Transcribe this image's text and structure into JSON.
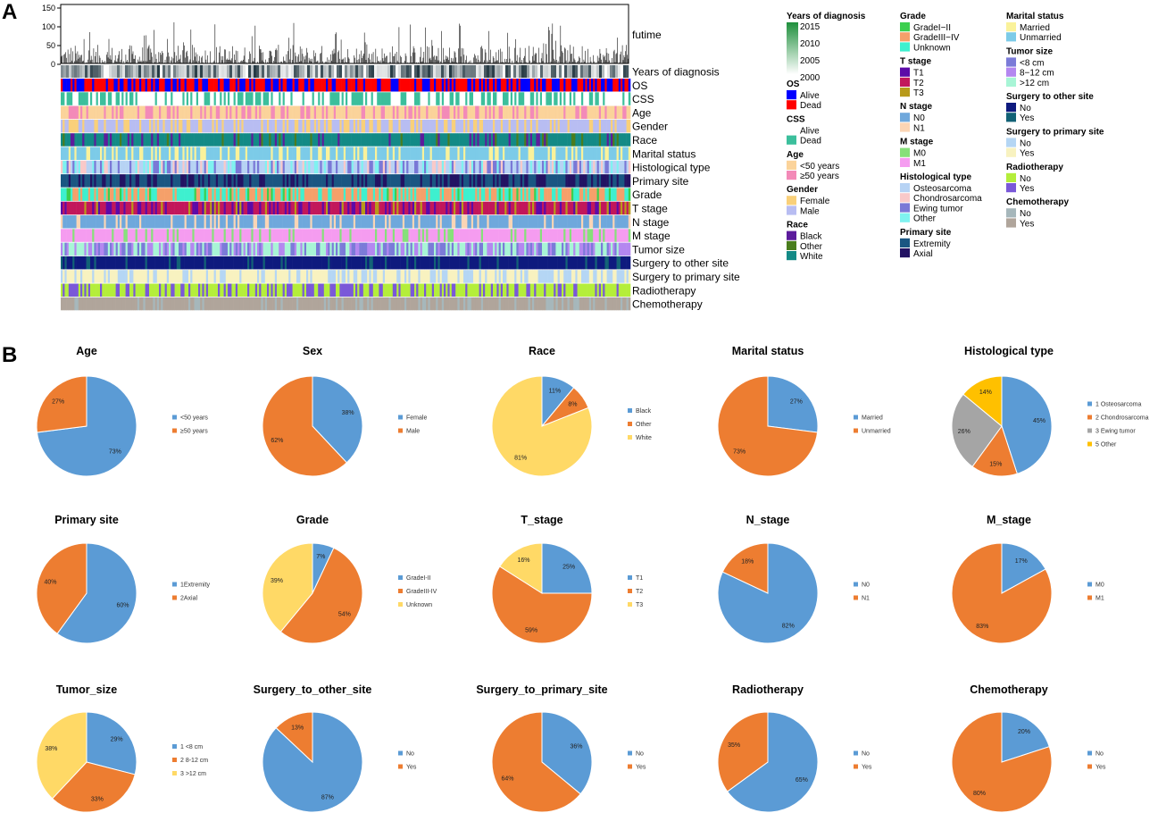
{
  "panels": {
    "a": "A",
    "b": "B"
  },
  "heatmap": {
    "futime_label": "futime",
    "futime_ticks": [
      "150",
      "100",
      "50",
      "0"
    ],
    "row_labels": [
      "Years of diagnosis",
      "OS",
      "CSS",
      "Age",
      "Gender",
      "Race",
      "Marital status",
      "Histological type",
      "Primary site",
      "Grade",
      "T  stage",
      "N  stage",
      "M  stage",
      "Tumor  size",
      "Surgery  to  other  site",
      "Surgery  to  primary  site",
      "Radiotherapy",
      "Chemotherapy"
    ]
  },
  "legends": [
    {
      "title": "Years of diagnosis",
      "type": "gradient",
      "ticks": [
        "2015",
        "2010",
        "2005",
        "2000"
      ],
      "colors": [
        "#1e8f3c",
        "#ffffff"
      ]
    },
    {
      "title": "OS",
      "items": [
        {
          "label": "Alive",
          "color": "#0000ff"
        },
        {
          "label": "Dead",
          "color": "#ff0000"
        }
      ]
    },
    {
      "title": "CSS",
      "items": [
        {
          "label": "Alive",
          "color": "#ffffff"
        },
        {
          "label": "Dead",
          "color": "#3cbf9c"
        }
      ]
    },
    {
      "title": "Age",
      "items": [
        {
          "label": "<50 years",
          "color": "#fbd39a"
        },
        {
          "label": "≥50 years",
          "color": "#f38ab8"
        }
      ]
    },
    {
      "title": "Gender",
      "items": [
        {
          "label": "Female",
          "color": "#f9d07a"
        },
        {
          "label": "Male",
          "color": "#b8bdf2"
        }
      ]
    },
    {
      "title": "Race",
      "items": [
        {
          "label": "Black",
          "color": "#5c1c9c"
        },
        {
          "label": "Other",
          "color": "#4a7d1e"
        },
        {
          "label": "White",
          "color": "#138a86"
        }
      ]
    },
    {
      "title": "Grade",
      "items": [
        {
          "label": "GradeI−II",
          "color": "#3ccf4e"
        },
        {
          "label": "GradeIII−IV",
          "color": "#f5a06a"
        },
        {
          "label": "Unknown",
          "color": "#3ef0cf"
        }
      ]
    },
    {
      "title": "T stage",
      "items": [
        {
          "label": "T1",
          "color": "#5c0aa8"
        },
        {
          "label": "T2",
          "color": "#c2175b"
        },
        {
          "label": "T3",
          "color": "#b89a1a"
        }
      ]
    },
    {
      "title": "N stage",
      "items": [
        {
          "label": "N0",
          "color": "#6fa8dc"
        },
        {
          "label": "N1",
          "color": "#fbd5b5"
        }
      ]
    },
    {
      "title": "M stage",
      "items": [
        {
          "label": "M0",
          "color": "#86e07a"
        },
        {
          "label": "M1",
          "color": "#f59cf0"
        }
      ]
    },
    {
      "title": "Histological type",
      "items": [
        {
          "label": "Osteosarcoma",
          "color": "#b7d3f4"
        },
        {
          "label": "Chondrosarcoma",
          "color": "#f9c9c9"
        },
        {
          "label": "Ewing tumor",
          "color": "#7a78d6"
        },
        {
          "label": "Other",
          "color": "#7ff2f0"
        }
      ]
    },
    {
      "title": "Primary site",
      "items": [
        {
          "label": "Extremity",
          "color": "#1a5682"
        },
        {
          "label": "Axial",
          "color": "#231363"
        }
      ]
    },
    {
      "title": "Marital status",
      "items": [
        {
          "label": "Married",
          "color": "#faf29a"
        },
        {
          "label": "Unmarried",
          "color": "#7ccbe8"
        }
      ]
    },
    {
      "title": "Tumor  size",
      "items": [
        {
          "label": "<8 cm",
          "color": "#7b7bd8"
        },
        {
          "label": "8−12 cm",
          "color": "#b487f0"
        },
        {
          "label": ">12 cm",
          "color": "#a8f5d6"
        }
      ]
    },
    {
      "title": "Surgery to other site",
      "items": [
        {
          "label": "No",
          "color": "#0e1a7e"
        },
        {
          "label": "Yes",
          "color": "#126276"
        }
      ]
    },
    {
      "title": "Surgery to primary site",
      "items": [
        {
          "label": "No",
          "color": "#b5d6f4"
        },
        {
          "label": "Yes",
          "color": "#f8f2c0"
        }
      ]
    },
    {
      "title": "Radiotherapy",
      "items": [
        {
          "label": "No",
          "color": "#b4ee3a"
        },
        {
          "label": "Yes",
          "color": "#7a58d8"
        }
      ]
    },
    {
      "title": "Chemotherapy",
      "items": [
        {
          "label": "No",
          "color": "#a6b7bb"
        },
        {
          "label": "Yes",
          "color": "#b0a59b"
        }
      ]
    }
  ],
  "chart_data": [
    {
      "type": "pie",
      "title": "Age",
      "labels": [
        "<50 years",
        "≥50 years"
      ],
      "values": [
        73,
        27
      ],
      "colors": [
        "#5b9bd5",
        "#ed7d31"
      ]
    },
    {
      "type": "pie",
      "title": "Sex",
      "labels": [
        "Female",
        "Male"
      ],
      "values": [
        38,
        62
      ],
      "colors": [
        "#5b9bd5",
        "#ed7d31"
      ]
    },
    {
      "type": "pie",
      "title": "Race",
      "labels": [
        "Black",
        "Other",
        "White"
      ],
      "values": [
        11,
        8,
        81
      ],
      "colors": [
        "#5b9bd5",
        "#ed7d31",
        "#ffd966"
      ]
    },
    {
      "type": "pie",
      "title": "Marital status",
      "labels": [
        "Married",
        "Unmarried"
      ],
      "values": [
        27,
        73
      ],
      "colors": [
        "#5b9bd5",
        "#ed7d31"
      ]
    },
    {
      "type": "pie",
      "title": "Histological type",
      "labels": [
        "1 Osteosarcoma",
        "2 Chondrosarcoma",
        "3 Ewing tumor",
        "5 Other"
      ],
      "values": [
        45,
        15,
        26,
        14
      ],
      "colors": [
        "#5b9bd5",
        "#ed7d31",
        "#a5a5a5",
        "#ffc000"
      ]
    },
    {
      "type": "pie",
      "title": "Primary site",
      "labels": [
        "1Extremity",
        "2Axial"
      ],
      "values": [
        60,
        40
      ],
      "colors": [
        "#5b9bd5",
        "#ed7d31"
      ]
    },
    {
      "type": "pie",
      "title": "Grade",
      "labels": [
        "GradeI-II",
        "GradeIII-IV",
        "Unknown"
      ],
      "values": [
        7,
        54,
        39
      ],
      "colors": [
        "#5b9bd5",
        "#ed7d31",
        "#ffd966"
      ]
    },
    {
      "type": "pie",
      "title": "T_stage",
      "labels": [
        "T1",
        "T2",
        "T3"
      ],
      "values": [
        25,
        59,
        16
      ],
      "colors": [
        "#5b9bd5",
        "#ed7d31",
        "#ffd966"
      ]
    },
    {
      "type": "pie",
      "title": "N_stage",
      "labels": [
        "N0",
        "N1"
      ],
      "values": [
        82,
        18
      ],
      "colors": [
        "#5b9bd5",
        "#ed7d31"
      ]
    },
    {
      "type": "pie",
      "title": "M_stage",
      "labels": [
        "M0",
        "M1"
      ],
      "values": [
        17,
        83
      ],
      "colors": [
        "#5b9bd5",
        "#ed7d31"
      ]
    },
    {
      "type": "pie",
      "title": "Tumor_size",
      "labels": [
        "1 <8 cm",
        "2 8-12 cm",
        "3 >12 cm"
      ],
      "values": [
        29,
        33,
        38
      ],
      "colors": [
        "#5b9bd5",
        "#ed7d31",
        "#ffd966"
      ]
    },
    {
      "type": "pie",
      "title": "Surgery_to_other_site",
      "labels": [
        "No",
        "Yes"
      ],
      "values": [
        87,
        13
      ],
      "colors": [
        "#5b9bd5",
        "#ed7d31"
      ]
    },
    {
      "type": "pie",
      "title": "Surgery_to_primary_site",
      "labels": [
        "No",
        "Yes"
      ],
      "values": [
        36,
        64
      ],
      "colors": [
        "#5b9bd5",
        "#ed7d31"
      ]
    },
    {
      "type": "pie",
      "title": "Radiotherapy",
      "labels": [
        "No",
        "Yes"
      ],
      "values": [
        65,
        35
      ],
      "colors": [
        "#5b9bd5",
        "#ed7d31"
      ]
    },
    {
      "type": "pie",
      "title": "Chemotherapy",
      "labels": [
        "No",
        "Yes"
      ],
      "values": [
        20,
        80
      ],
      "colors": [
        "#5b9bd5",
        "#ed7d31"
      ]
    }
  ]
}
